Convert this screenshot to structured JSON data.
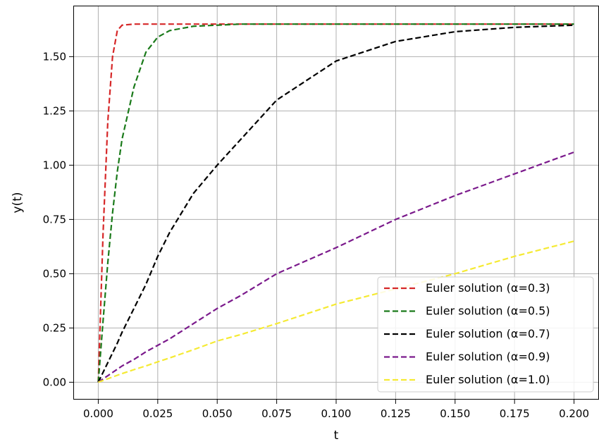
{
  "chart_data": {
    "type": "line",
    "xlabel": "t",
    "ylabel": "y(t)",
    "xlim": [
      -0.0105,
      0.2105
    ],
    "ylim": [
      -0.08,
      1.735
    ],
    "xticks": [
      0.0,
      0.025,
      0.05,
      0.075,
      0.1,
      0.125,
      0.15,
      0.175,
      0.2
    ],
    "xtick_labels": [
      "0.000",
      "0.025",
      "0.050",
      "0.075",
      "0.100",
      "0.125",
      "0.150",
      "0.175",
      "0.200"
    ],
    "yticks": [
      0.0,
      0.25,
      0.5,
      0.75,
      1.0,
      1.25,
      1.5
    ],
    "ytick_labels": [
      "0.00",
      "0.25",
      "0.50",
      "0.75",
      "1.00",
      "1.25",
      "1.50"
    ],
    "grid": true,
    "legend_position": "lower right",
    "x": [
      0.0,
      0.002,
      0.004,
      0.006,
      0.008,
      0.01,
      0.015,
      0.02,
      0.025,
      0.03,
      0.04,
      0.05,
      0.06,
      0.075,
      0.1,
      0.125,
      0.15,
      0.175,
      0.2
    ],
    "series": [
      {
        "name": "Euler solution (α=0.3)",
        "color": "#d62728",
        "values": [
          0.0,
          0.68,
          1.2,
          1.5,
          1.62,
          1.645,
          1.65,
          1.65,
          1.65,
          1.65,
          1.65,
          1.65,
          1.65,
          1.65,
          1.65,
          1.65,
          1.65,
          1.65,
          1.65
        ]
      },
      {
        "name": "Euler solution (α=0.5)",
        "color": "#1a7a1a",
        "values": [
          0.0,
          0.28,
          0.55,
          0.78,
          0.97,
          1.12,
          1.36,
          1.52,
          1.59,
          1.62,
          1.64,
          1.645,
          1.65,
          1.65,
          1.65,
          1.65,
          1.65,
          1.65,
          1.65
        ]
      },
      {
        "name": "Euler solution (α=0.7)",
        "color": "#000000",
        "values": [
          0.0,
          0.045,
          0.09,
          0.135,
          0.18,
          0.23,
          0.34,
          0.45,
          0.58,
          0.69,
          0.87,
          1.0,
          1.12,
          1.3,
          1.48,
          1.57,
          1.615,
          1.635,
          1.645
        ]
      },
      {
        "name": "Euler solution (α=0.9)",
        "color": "#7b1a8c",
        "values": [
          0.0,
          0.015,
          0.03,
          0.045,
          0.06,
          0.075,
          0.105,
          0.14,
          0.17,
          0.2,
          0.27,
          0.34,
          0.4,
          0.5,
          0.62,
          0.75,
          0.86,
          0.96,
          1.06
        ]
      },
      {
        "name": "Euler solution (α=1.0)",
        "color": "#f5ea33",
        "values": [
          0.0,
          0.008,
          0.016,
          0.024,
          0.032,
          0.04,
          0.058,
          0.075,
          0.094,
          0.112,
          0.15,
          0.19,
          0.22,
          0.27,
          0.36,
          0.43,
          0.5,
          0.58,
          0.65
        ]
      }
    ]
  }
}
